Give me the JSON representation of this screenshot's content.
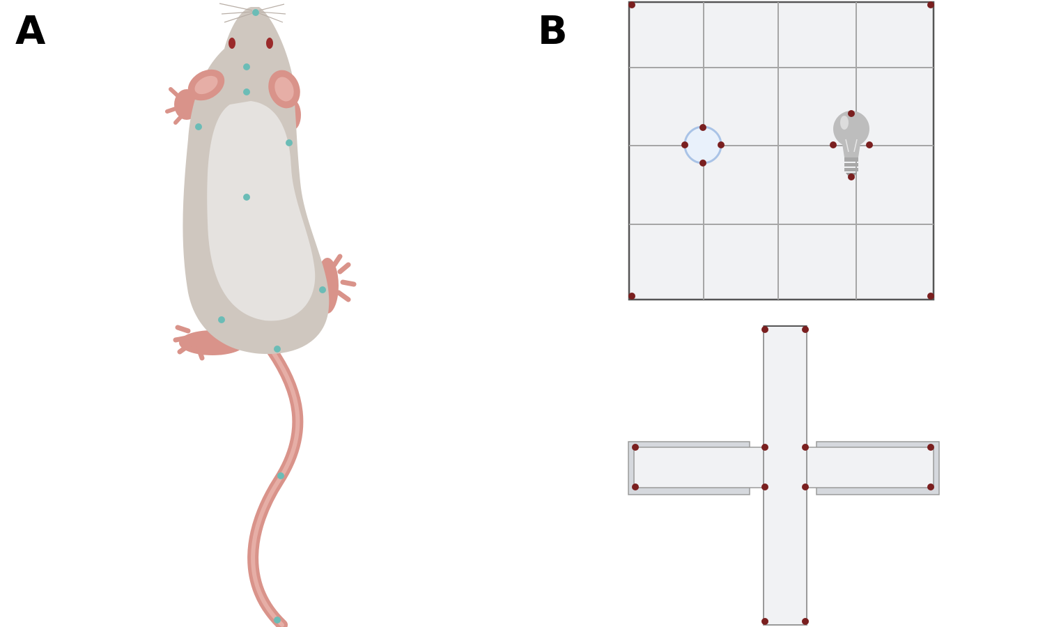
{
  "panels": {
    "a": {
      "label": "A"
    },
    "b": {
      "label": "B"
    }
  },
  "colors": {
    "background": "#ffffff",
    "rat_fur_outer": "#cfc7bf",
    "rat_fur_inner": "#e5e2df",
    "rat_skin": "#d9938a",
    "rat_eye": "#9a2a2a",
    "keypoint_rat": "#6bbcb6",
    "keypoint_arena": "#7a1f1f",
    "arena_floor": "#f1f2f4",
    "arena_wall": "#555555",
    "grid_line": "#a6a6a6",
    "object_ring": "#a9c3e6",
    "object_fill": "#e9f1fb",
    "bulb": "#bdbdbd",
    "maze_wall": "#9a9a9a",
    "maze_ledge": "#d5d8dd"
  },
  "icons": {
    "open_field_object_1": "circular-object-icon",
    "open_field_object_2": "light-bulb-icon"
  }
}
